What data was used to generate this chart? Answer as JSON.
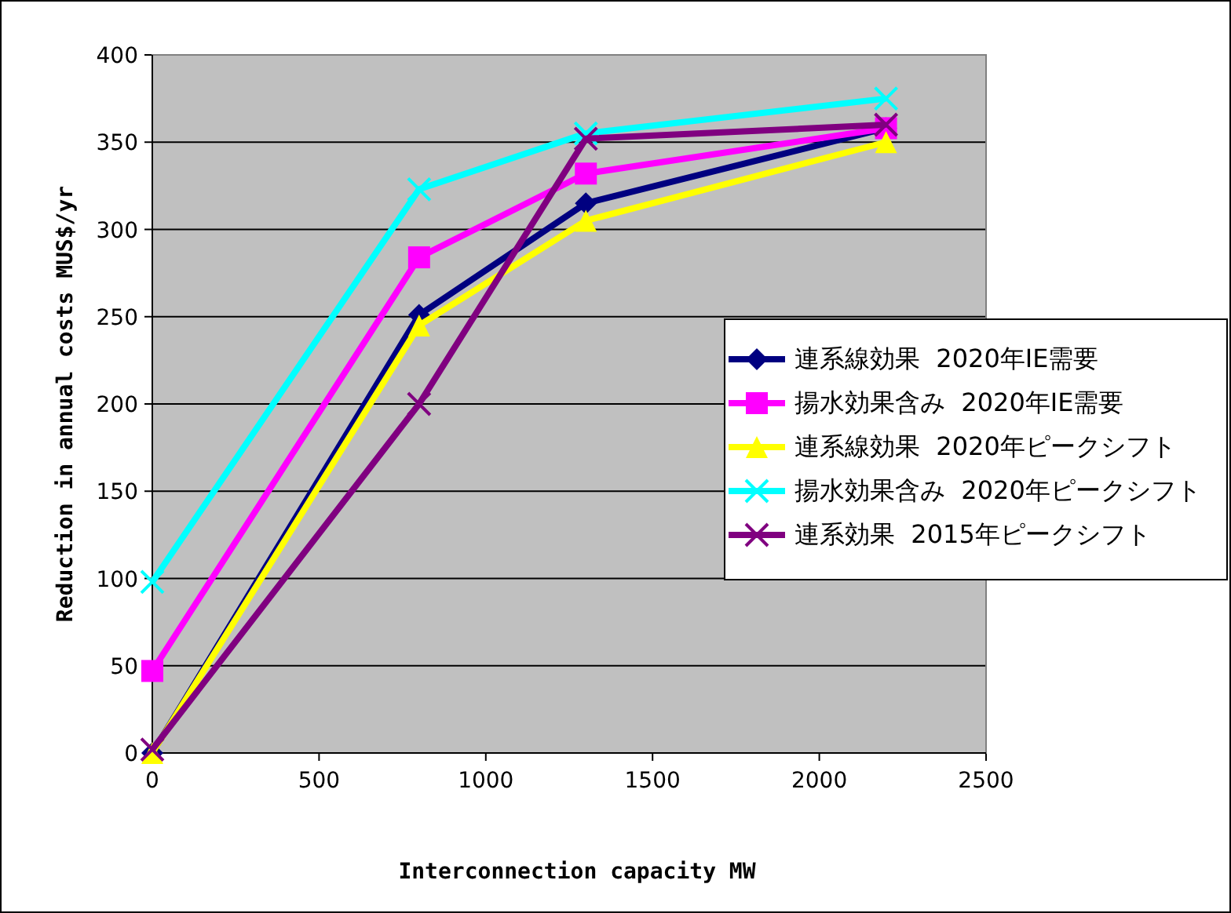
{
  "chart_data": {
    "type": "line",
    "xlabel": "Interconnection capacity MW",
    "ylabel": "Reduction in annual costs MUS$/yr",
    "x": [
      0,
      800,
      1300,
      2200
    ],
    "xlim": [
      0,
      2500
    ],
    "xticks": [
      0,
      500,
      1000,
      1500,
      2000,
      2500
    ],
    "ylim": [
      0,
      400
    ],
    "yticks": [
      0,
      50,
      100,
      150,
      200,
      250,
      300,
      350,
      400
    ],
    "grid": "y",
    "legend": "right",
    "series": [
      {
        "name": "連系線効果  2020年IE需要",
        "color": "#000080",
        "marker": "diamond",
        "values": [
          0,
          251,
          315,
          358
        ]
      },
      {
        "name": "揚水効果含み  2020年IE需要",
        "color": "#ff00ff",
        "marker": "square",
        "values": [
          47,
          284,
          332,
          358
        ]
      },
      {
        "name": "連系線効果  2020年ピークシフト",
        "color": "#ffff00",
        "marker": "triangle",
        "values": [
          0,
          245,
          305,
          350
        ]
      },
      {
        "name": "揚水効果含み  2020年ピークシフト",
        "color": "#00ffff",
        "marker": "cross",
        "values": [
          98,
          323,
          355,
          375
        ]
      },
      {
        "name": "連系効果  2015年ピークシフト",
        "color": "#800080",
        "marker": "cross",
        "values": [
          2,
          200,
          352,
          360
        ]
      }
    ]
  }
}
